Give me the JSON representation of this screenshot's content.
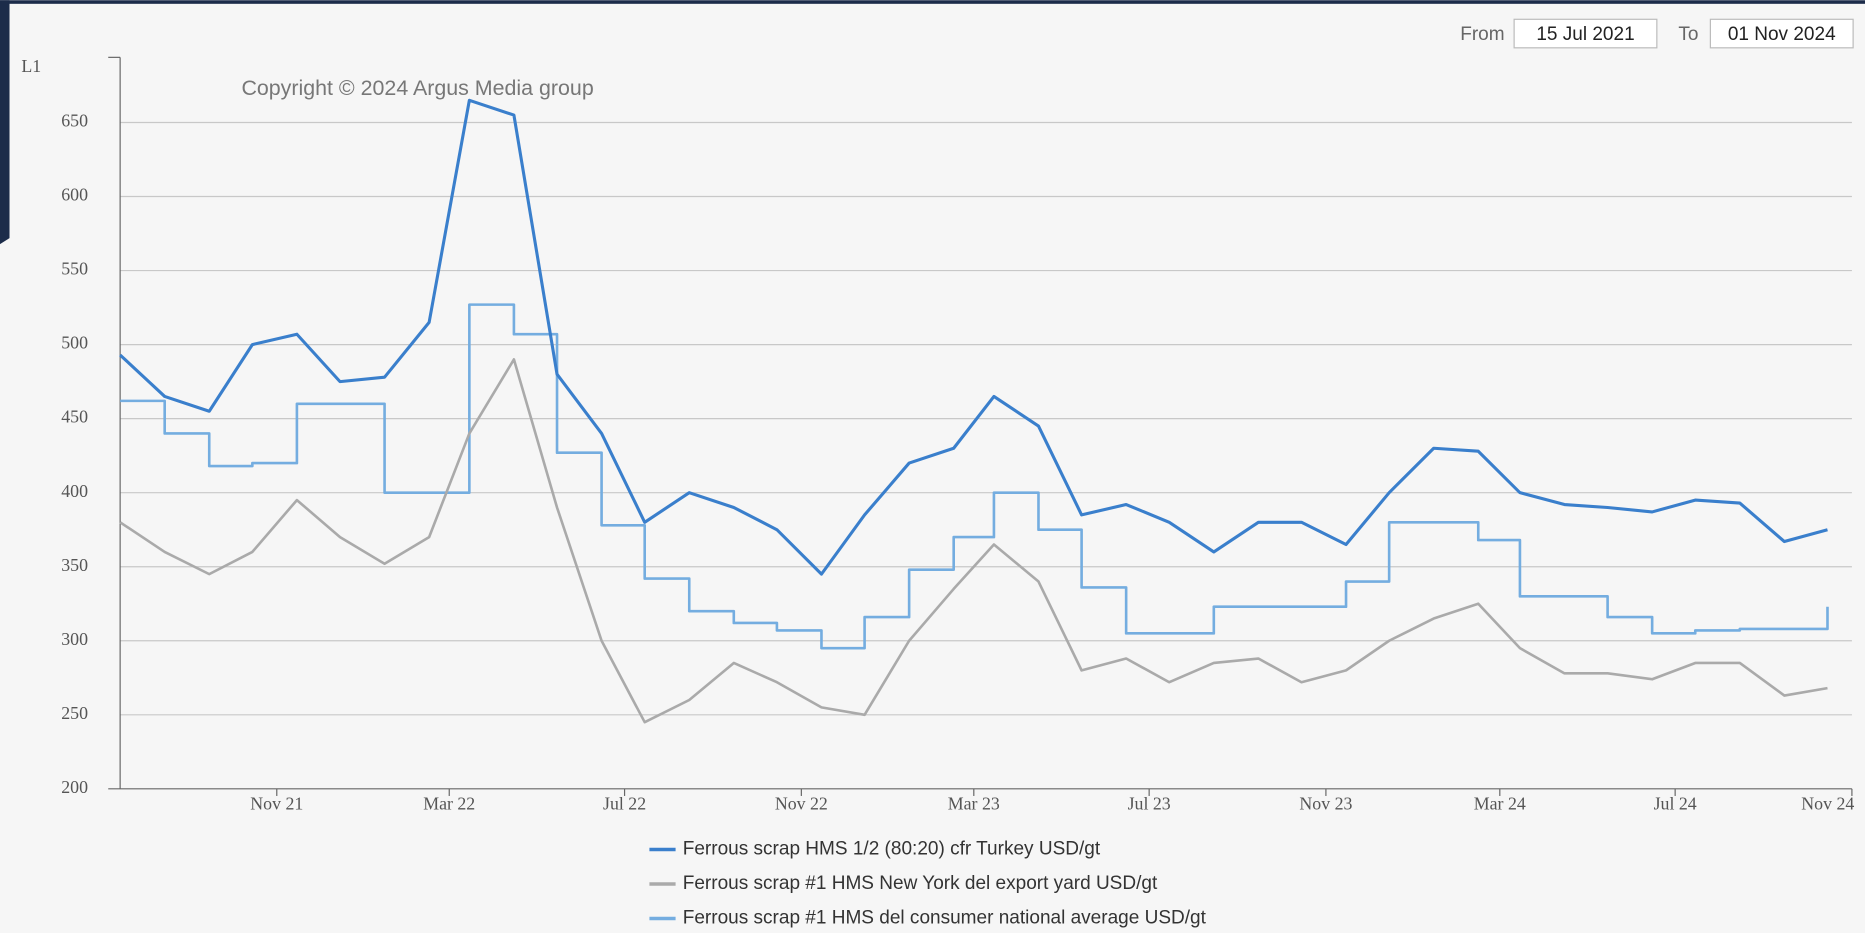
{
  "chart_data": {
    "type": "line",
    "y_label": "L1",
    "annotation": "Copyright © 2024 Argus Media group",
    "range_selector": {
      "from_label": "From",
      "from": "15 Jul 2021",
      "to_label": "To",
      "to": "01 Nov 2024"
    },
    "xlim": [
      "2021-07-15",
      "2024-11-01"
    ],
    "ylim": [
      200,
      694
    ],
    "yticks": [
      200,
      250,
      300,
      350,
      400,
      450,
      500,
      550,
      600,
      650
    ],
    "xticks": [
      {
        "value": "2021-11",
        "label": "Nov 21"
      },
      {
        "value": "2022-03",
        "label": "Mar 22"
      },
      {
        "value": "2022-07",
        "label": "Jul 22"
      },
      {
        "value": "2022-11",
        "label": "Nov 22"
      },
      {
        "value": "2023-03",
        "label": "Mar 23"
      },
      {
        "value": "2023-07",
        "label": "Jul 23"
      },
      {
        "value": "2023-11",
        "label": "Nov 23"
      },
      {
        "value": "2024-03",
        "label": "Mar 24"
      },
      {
        "value": "2024-07",
        "label": "Jul 24"
      },
      {
        "value": "2024-11",
        "label": "Nov 24"
      }
    ],
    "grid": true,
    "legend": "bottom",
    "x": [
      "2021-07",
      "2021-08",
      "2021-09",
      "2021-10",
      "2021-11",
      "2021-12",
      "2022-01",
      "2022-02",
      "2022-03",
      "2022-04",
      "2022-05",
      "2022-06",
      "2022-07",
      "2022-08",
      "2022-09",
      "2022-10",
      "2022-11",
      "2022-12",
      "2023-01",
      "2023-02",
      "2023-03",
      "2023-04",
      "2023-05",
      "2023-06",
      "2023-07",
      "2023-08",
      "2023-09",
      "2023-10",
      "2023-11",
      "2023-12",
      "2024-01",
      "2024-02",
      "2024-03",
      "2024-04",
      "2024-05",
      "2024-06",
      "2024-07",
      "2024-08",
      "2024-09",
      "2024-10"
    ],
    "series": [
      {
        "name": "Ferrous scrap HMS 1/2 (80:20) cfr Turkey USD/gt",
        "color": "#3a7fcc",
        "values": [
          493,
          465,
          455,
          500,
          507,
          475,
          478,
          515,
          665,
          655,
          480,
          440,
          380,
          400,
          390,
          375,
          345,
          385,
          420,
          430,
          465,
          445,
          385,
          392,
          380,
          360,
          380,
          380,
          365,
          400,
          430,
          428,
          400,
          392,
          390,
          387,
          395,
          393,
          367,
          375
        ]
      },
      {
        "name": "Ferrous scrap #1 HMS New York del export yard USD/gt",
        "color": "#aaaaaa",
        "values": [
          380,
          360,
          345,
          360,
          395,
          370,
          352,
          370,
          440,
          490,
          390,
          300,
          245,
          260,
          285,
          272,
          255,
          250,
          300,
          335,
          365,
          340,
          280,
          288,
          272,
          285,
          288,
          272,
          280,
          300,
          315,
          325,
          295,
          278,
          278,
          274,
          285,
          285,
          263,
          268
        ]
      },
      {
        "name": "Ferrous scrap #1 HMS del consumer national average USD/gt",
        "color": "#74ade0",
        "step": true,
        "values": [
          462,
          440,
          418,
          420,
          460,
          460,
          400,
          400,
          527,
          507,
          427,
          378,
          342,
          320,
          312,
          307,
          295,
          316,
          348,
          370,
          400,
          375,
          336,
          305,
          305,
          323,
          323,
          323,
          340,
          380,
          380,
          368,
          330,
          330,
          316,
          305,
          307,
          308,
          308,
          323
        ]
      }
    ]
  }
}
